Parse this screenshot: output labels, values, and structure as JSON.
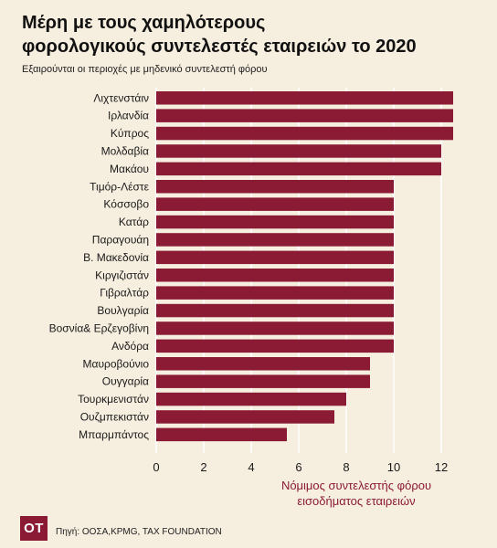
{
  "header": {
    "title_line1": "Μέρη με τους χαμηλότερους",
    "title_line2": "φορολογικούς συντελεστές εταιρειών το 2020",
    "subtitle": "Εξαιρούνται οι περιοχές με μηδενικό συντελεστή φόρου"
  },
  "footer": {
    "logo_text": "ΟΤ",
    "source": "Πηγή: ΟΟΣΑ,KPMG, TAX FOUNDATION"
  },
  "colors": {
    "bar": "#8b1a35",
    "background": "#f6eedf",
    "grid": "#ffffff"
  },
  "chart_data": {
    "type": "bar",
    "orientation": "horizontal",
    "title": "Μέρη με τους χαμηλότερους φορολογικούς συντελεστές εταιρειών το 2020",
    "subtitle": "Εξαιρούνται οι περιοχές με μηδενικό συντελεστή φόρου",
    "xlabel_line1": "Νόμιμος συντελεστής φόρου",
    "xlabel_line2": "εισοδήματος εταιρειών",
    "ylabel": "",
    "categories": [
      "Λιχτενστάιν",
      "Ιρλανδία",
      "Κύπρος",
      "Μολδαβία",
      "Μακάου",
      "Τιμόρ-Λέστε",
      "Κόσσοβο",
      "Κατάρ",
      "Παραγουάη",
      "Β. Μακεδονία",
      "Κιργιζιστάν",
      "Γιβραλτάρ",
      "Βουλγαρία",
      "Βοσνία& Ερζεγοβίνη",
      "Ανδόρα",
      "Μαυροβούνιο",
      "Ουγγαρία",
      "Τουρκμενιστάν",
      "Ουζμπεκιστάν",
      "Μπαρμπάντος"
    ],
    "values": [
      12.5,
      12.5,
      12.5,
      12,
      12,
      10,
      10,
      10,
      10,
      10,
      10,
      10,
      10,
      10,
      10,
      9,
      9,
      8,
      7.5,
      5.5
    ],
    "xlim": [
      0,
      13
    ],
    "xticks": [
      0,
      2,
      4,
      6,
      8,
      10,
      12
    ],
    "grid": true
  }
}
